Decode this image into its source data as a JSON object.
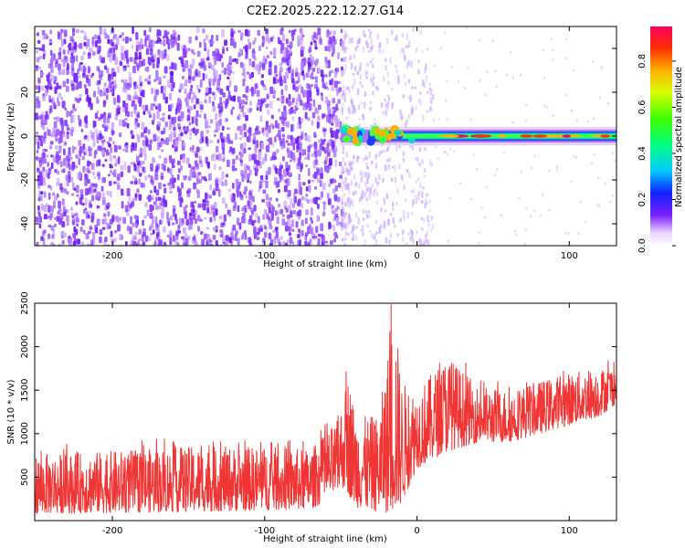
{
  "title": "C2E2.2025.222.12.27.G14",
  "chart_data": [
    {
      "type": "heatmap",
      "xlabel": "Height of straight line (km)",
      "ylabel": "Frequency (Hz)",
      "xlim": [
        -251,
        131
      ],
      "ylim": [
        -50,
        50
      ],
      "xticks": [
        -200,
        -100,
        0,
        100
      ],
      "yticks": [
        -40,
        -20,
        0,
        20,
        40
      ],
      "colorbar": {
        "label": "Normalized spectral amplitude",
        "range": [
          0,
          0.95
        ],
        "ticks": [
          0.0,
          0.2,
          0.4,
          0.6,
          0.8
        ]
      },
      "regions": [
        {
          "x_range": [
            -251,
            -50
          ],
          "description_values": {
            "freq_range": [
              -50,
              50
            ],
            "amplitude_approx": 0.12
          }
        },
        {
          "x_range": [
            -50,
            -10
          ],
          "description_values": {
            "freq_range": [
              -50,
              50
            ],
            "amplitude_approx": 0.05
          }
        },
        {
          "x_range": [
            -50,
            131
          ],
          "description_values": {
            "freq_center": 0,
            "amplitude_peak_approx": 0.9
          }
        }
      ]
    },
    {
      "type": "line",
      "xlabel": "Height of straight line (km)",
      "ylabel": "SNR (10 * v/v)",
      "xlim": [
        -251,
        131
      ],
      "ylim": [
        0,
        2500
      ],
      "xticks": [
        -200,
        -100,
        0,
        100
      ],
      "yticks": [
        500,
        1000,
        1500,
        2000,
        2500
      ],
      "series_color": "#f03535",
      "envelope": {
        "x": [
          -251,
          -200,
          -150,
          -100,
          -70,
          -52,
          -50,
          -45,
          -40,
          -25,
          -15,
          -10,
          0,
          20,
          40,
          60,
          80,
          100,
          120,
          131
        ],
        "low": [
          80,
          90,
          100,
          120,
          130,
          300,
          400,
          300,
          150,
          100,
          80,
          200,
          600,
          800,
          900,
          900,
          1000,
          1100,
          1200,
          1350
        ],
        "high": [
          760,
          800,
          850,
          850,
          820,
          1150,
          1300,
          1700,
          1200,
          1200,
          2460,
          1600,
          1500,
          1900,
          1550,
          1500,
          1600,
          1700,
          1750,
          1800
        ]
      }
    }
  ]
}
